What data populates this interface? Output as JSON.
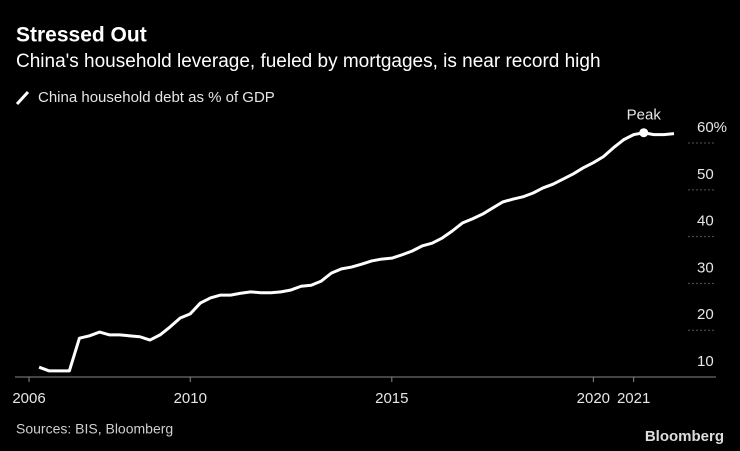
{
  "chart_data": {
    "type": "line",
    "title": "Stressed Out",
    "subtitle": "China's household leverage, fueled by mortgages, is near record high",
    "source": "Sources: BIS, Bloomberg",
    "brand": "Bloomberg",
    "x": [
      2006.25,
      2006.5,
      2006.75,
      2007,
      2007.25,
      2007.5,
      2007.75,
      2008,
      2008.25,
      2008.5,
      2008.75,
      2009,
      2009.25,
      2009.5,
      2009.75,
      2010,
      2010.25,
      2010.5,
      2010.75,
      2011,
      2011.25,
      2011.5,
      2011.75,
      2012,
      2012.25,
      2012.5,
      2012.75,
      2013,
      2013.25,
      2013.5,
      2013.75,
      2014,
      2014.25,
      2014.5,
      2014.75,
      2015,
      2015.25,
      2015.5,
      2015.75,
      2016,
      2016.25,
      2016.5,
      2016.75,
      2017,
      2017.25,
      2017.5,
      2017.75,
      2018,
      2018.25,
      2018.5,
      2018.75,
      2019,
      2019.25,
      2019.5,
      2019.75,
      2020,
      2020.25,
      2020.5,
      2020.75,
      2021,
      2021.25,
      2021.5,
      2021.75,
      2022
    ],
    "series": [
      {
        "name": "China household debt as % of GDP",
        "color": "#ffffff",
        "values": [
          12.1,
          11.3,
          11.3,
          11.3,
          18.3,
          18.8,
          19.6,
          19.0,
          19.0,
          18.8,
          18.6,
          17.9,
          19.0,
          20.7,
          22.6,
          23.5,
          25.8,
          26.9,
          27.5,
          27.5,
          27.9,
          28.2,
          28.0,
          28.0,
          28.2,
          28.6,
          29.4,
          29.6,
          30.5,
          32.2,
          33.1,
          33.5,
          34.1,
          34.8,
          35.2,
          35.4,
          36.1,
          36.9,
          38.0,
          38.6,
          39.7,
          41.2,
          42.9,
          43.8,
          44.8,
          46.1,
          47.4,
          48.0,
          48.5,
          49.3,
          50.4,
          51.2,
          52.3,
          53.4,
          54.7,
          55.8,
          57.1,
          59.0,
          60.7,
          61.8,
          62.2,
          61.8,
          61.8,
          62.0
        ]
      }
    ],
    "annotation": {
      "text": "Peak",
      "x": 2021.25,
      "y": 62.2
    },
    "xlim": [
      2005.9,
      2022.1
    ],
    "xticks": [
      2006,
      2010,
      2015,
      2020,
      2021
    ],
    "ylim": [
      10,
      63
    ],
    "yticks": [
      10,
      20,
      30,
      40,
      50,
      {
        "value": 60,
        "label": "60%"
      }
    ],
    "grid": true
  }
}
